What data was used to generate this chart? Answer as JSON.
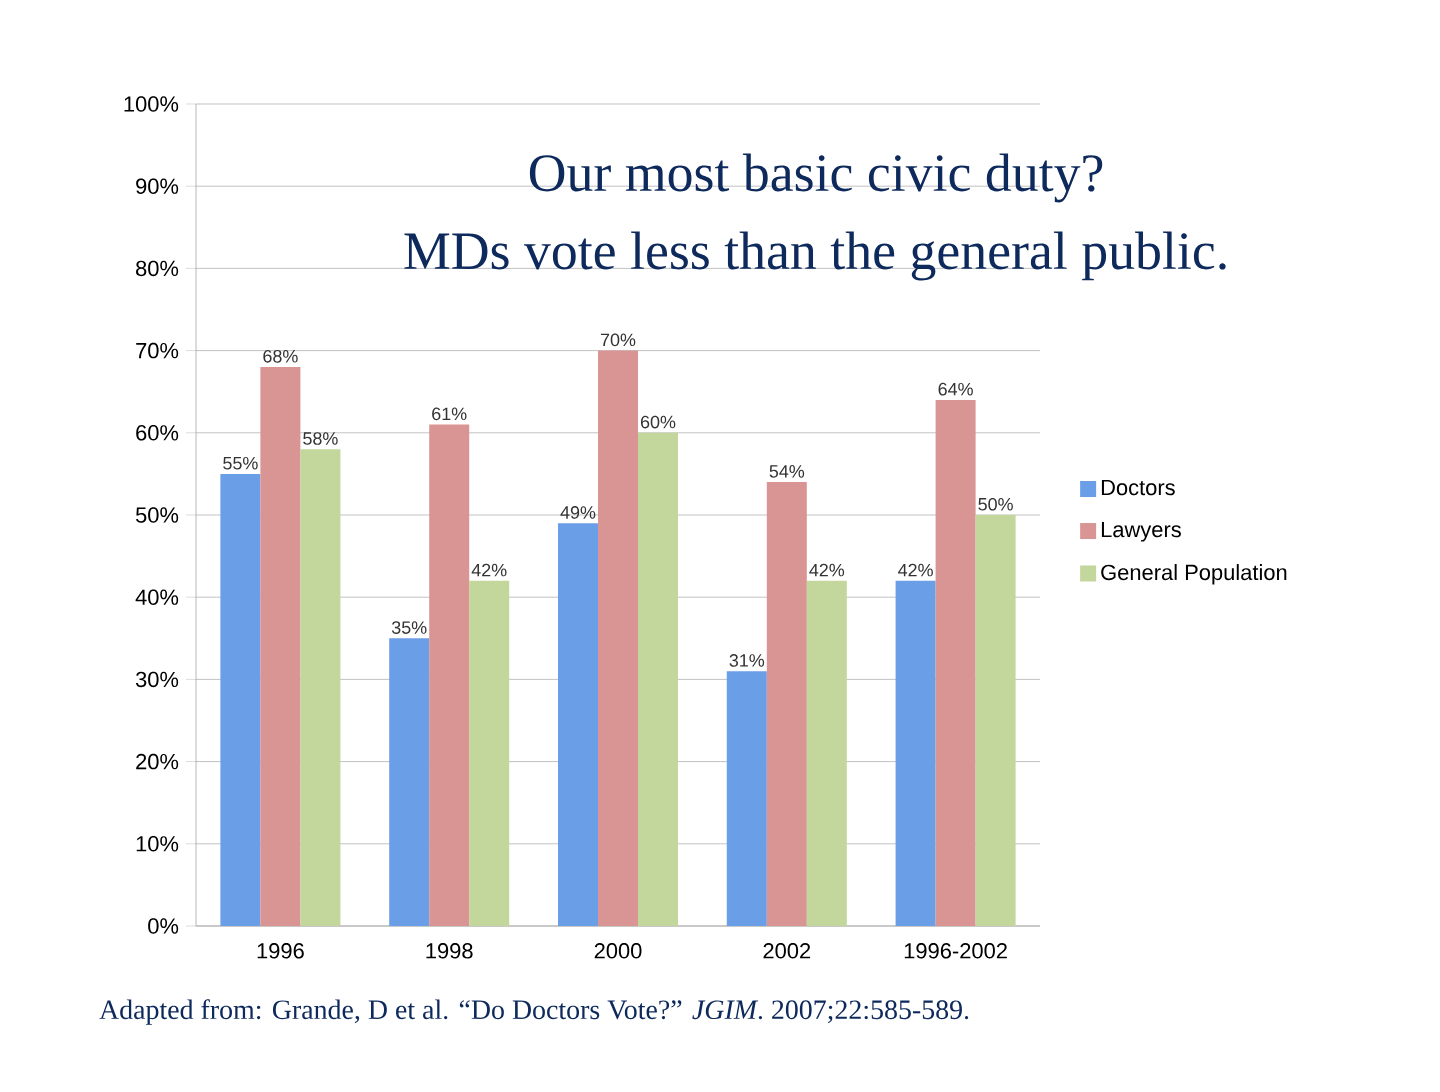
{
  "chart_data": {
    "type": "bar",
    "title": "Our most basic civic duty?",
    "subtitle": "MDs vote less than the general public.",
    "categories": [
      "1996",
      "1998",
      "2000",
      "2002",
      "1996-2002"
    ],
    "series": [
      {
        "name": "Doctors",
        "color": "#6a9ee6",
        "values": [
          55,
          35,
          49,
          31,
          42
        ],
        "value_labels": [
          "55%",
          "35%",
          "49%",
          "31%",
          "42%"
        ]
      },
      {
        "name": "Lawyers",
        "color": "#d99594",
        "values": [
          68,
          61,
          70,
          54,
          64
        ],
        "value_labels": [
          "68%",
          "61%",
          "70%",
          "54%",
          "64%"
        ]
      },
      {
        "name": "General Population",
        "color": "#c3d69b",
        "values": [
          58,
          42,
          60,
          42,
          50
        ],
        "value_labels": [
          "58%",
          "42%",
          "60%",
          "42%",
          "50%"
        ]
      }
    ],
    "ylim": [
      0,
      100
    ],
    "yticks": [
      {
        "value": 0,
        "label": "0%"
      },
      {
        "value": 10,
        "label": "10%"
      },
      {
        "value": 20,
        "label": "20%"
      },
      {
        "value": 30,
        "label": "30%"
      },
      {
        "value": 40,
        "label": "40%"
      },
      {
        "value": 50,
        "label": "50%"
      },
      {
        "value": 60,
        "label": "60%"
      },
      {
        "value": 70,
        "label": "70%"
      },
      {
        "value": 80,
        "label": "80%"
      },
      {
        "value": 90,
        "label": "90%"
      },
      {
        "value": 100,
        "label": "100%"
      }
    ],
    "grid": "y",
    "legend": "right",
    "annotations": [
      "Adapted from:  Grande, D et al.  “Do Doctors Vote?”  *JGIM*.  2007;22:585-589."
    ]
  }
}
